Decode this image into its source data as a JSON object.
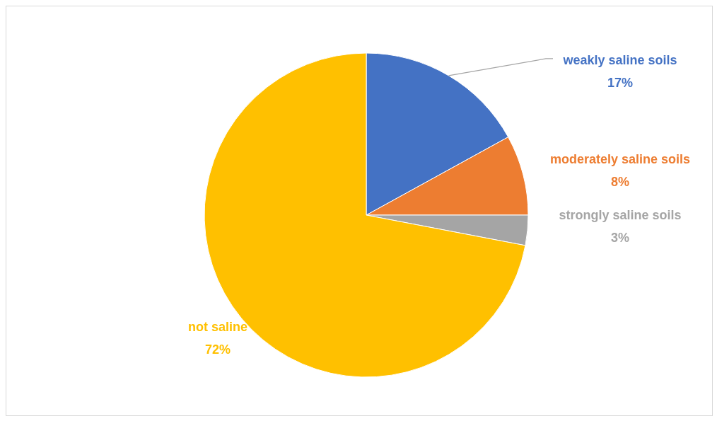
{
  "chart_data": {
    "type": "pie",
    "categories": [
      "weakly saline soils",
      "moderately saline soils",
      "strongly saline soils",
      "not saline"
    ],
    "values": [
      17,
      8,
      3,
      72
    ],
    "colors": [
      "#4472c4",
      "#ed7d31",
      "#a5a5a5",
      "#ffc000"
    ],
    "value_labels": [
      "17%",
      "8%",
      "3%",
      "72%"
    ]
  }
}
